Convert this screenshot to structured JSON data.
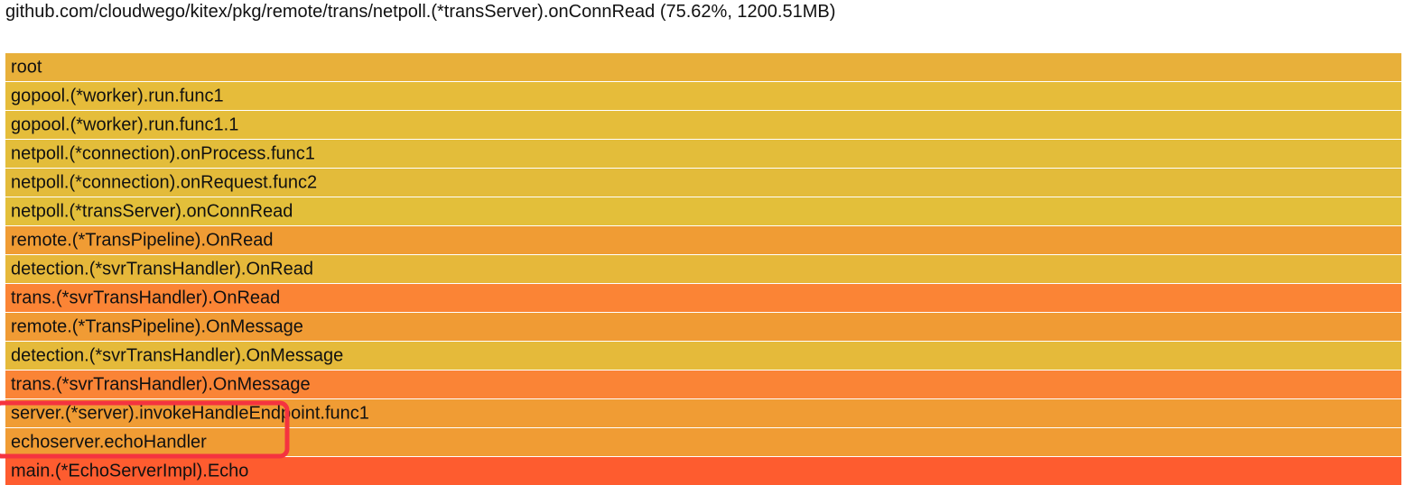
{
  "header": {
    "title": "github.com/cloudwego/kitex/pkg/remote/trans/netpoll.(*transServer).onConnRead (75.62%, 1200.51MB)"
  },
  "frames": [
    {
      "label": "root",
      "color": "#e8b03a"
    },
    {
      "label": "gopool.(*worker).run.func1",
      "color": "#e6bc3a"
    },
    {
      "label": "gopool.(*worker).run.func1.1",
      "color": "#e5bd3a"
    },
    {
      "label": "netpoll.(*connection).onProcess.func1",
      "color": "#e3bd3a"
    },
    {
      "label": "netpoll.(*connection).onRequest.func2",
      "color": "#e3bb3a"
    },
    {
      "label": "netpoll.(*transServer).onConnRead",
      "color": "#e3bf3a"
    },
    {
      "label": "remote.(*TransPipeline).OnRead",
      "color": "#f09c34"
    },
    {
      "label": "detection.(*svrTransHandler).OnRead",
      "color": "#e6b83a"
    },
    {
      "label": "trans.(*svrTransHandler).OnRead",
      "color": "#fb8435"
    },
    {
      "label": "remote.(*TransPipeline).OnMessage",
      "color": "#f09b34"
    },
    {
      "label": "detection.(*svrTransHandler).OnMessage",
      "color": "#e5ba3a"
    },
    {
      "label": "trans.(*svrTransHandler).OnMessage",
      "color": "#fa8436"
    },
    {
      "label": "server.(*server).invokeHandleEndpoint.func1",
      "color": "#f09c34"
    },
    {
      "label": "echoserver.echoHandler",
      "color": "#f09c34"
    },
    {
      "label": "main.(*EchoServerImpl).Echo",
      "color": "#fe5c2f"
    }
  ]
}
